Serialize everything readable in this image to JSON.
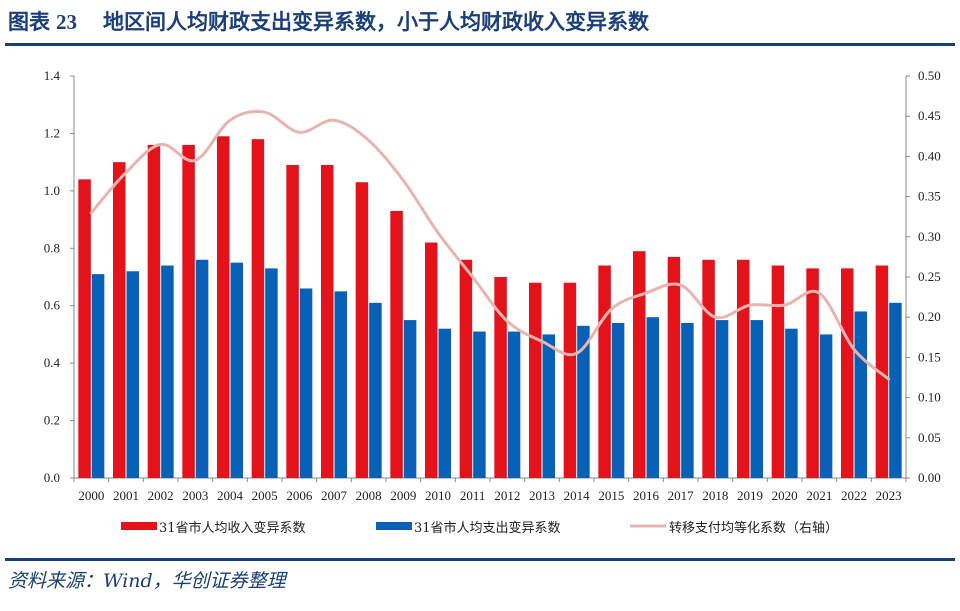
{
  "header": {
    "figure_label": "图表",
    "figure_number": "23",
    "title": "地区间人均财政支出变异系数，小于人均财政收入变异系数"
  },
  "footer": {
    "source": "资料来源：Wind，华创证券整理"
  },
  "colors": {
    "accent": "#1a3f7a",
    "revenue_bar": "#e3121b",
    "expenditure_bar": "#0860b7",
    "transfer_line": "#e8b4b0"
  },
  "chart_data": {
    "type": "bar",
    "title": "地区间人均财政支出变异系数，小于人均财政收入变异系数",
    "categories": [
      "2000",
      "2001",
      "2002",
      "2003",
      "2004",
      "2005",
      "2006",
      "2007",
      "2008",
      "2009",
      "2010",
      "2011",
      "2012",
      "2013",
      "2014",
      "2015",
      "2016",
      "2017",
      "2018",
      "2019",
      "2020",
      "2021",
      "2022",
      "2023"
    ],
    "series": [
      {
        "name": "31省市人均收入变异系数",
        "type": "bar",
        "axis": "left",
        "values": [
          1.04,
          1.1,
          1.16,
          1.16,
          1.19,
          1.18,
          1.09,
          1.09,
          1.03,
          0.93,
          0.82,
          0.76,
          0.7,
          0.68,
          0.68,
          0.74,
          0.79,
          0.77,
          0.76,
          0.76,
          0.74,
          0.73,
          0.73,
          0.74
        ]
      },
      {
        "name": "31省市人均支出变异系数",
        "type": "bar",
        "axis": "left",
        "values": [
          0.71,
          0.72,
          0.74,
          0.76,
          0.75,
          0.73,
          0.66,
          0.65,
          0.61,
          0.55,
          0.52,
          0.51,
          0.51,
          0.5,
          0.53,
          0.54,
          0.56,
          0.54,
          0.55,
          0.55,
          0.52,
          0.5,
          0.58,
          0.61
        ]
      },
      {
        "name": "转移支付均等化系数（右轴）",
        "type": "line",
        "axis": "right",
        "values": [
          0.33,
          0.38,
          0.415,
          0.395,
          0.445,
          0.455,
          0.43,
          0.445,
          0.42,
          0.37,
          0.305,
          0.25,
          0.195,
          0.17,
          0.155,
          0.21,
          0.23,
          0.24,
          0.2,
          0.215,
          0.215,
          0.23,
          0.16,
          0.123
        ]
      }
    ],
    "left_axis": {
      "ylim": [
        0,
        1.4
      ],
      "ticks": [
        "0.0",
        "0.2",
        "0.4",
        "0.6",
        "0.8",
        "1.0",
        "1.2",
        "1.4"
      ]
    },
    "right_axis": {
      "ylim": [
        0,
        0.5
      ],
      "ticks": [
        "0.00",
        "0.05",
        "0.10",
        "0.15",
        "0.20",
        "0.25",
        "0.30",
        "0.35",
        "0.40",
        "0.45",
        "0.50"
      ]
    },
    "xlabel": "",
    "ylabel": "",
    "grid": false,
    "legend_position": "bottom"
  }
}
